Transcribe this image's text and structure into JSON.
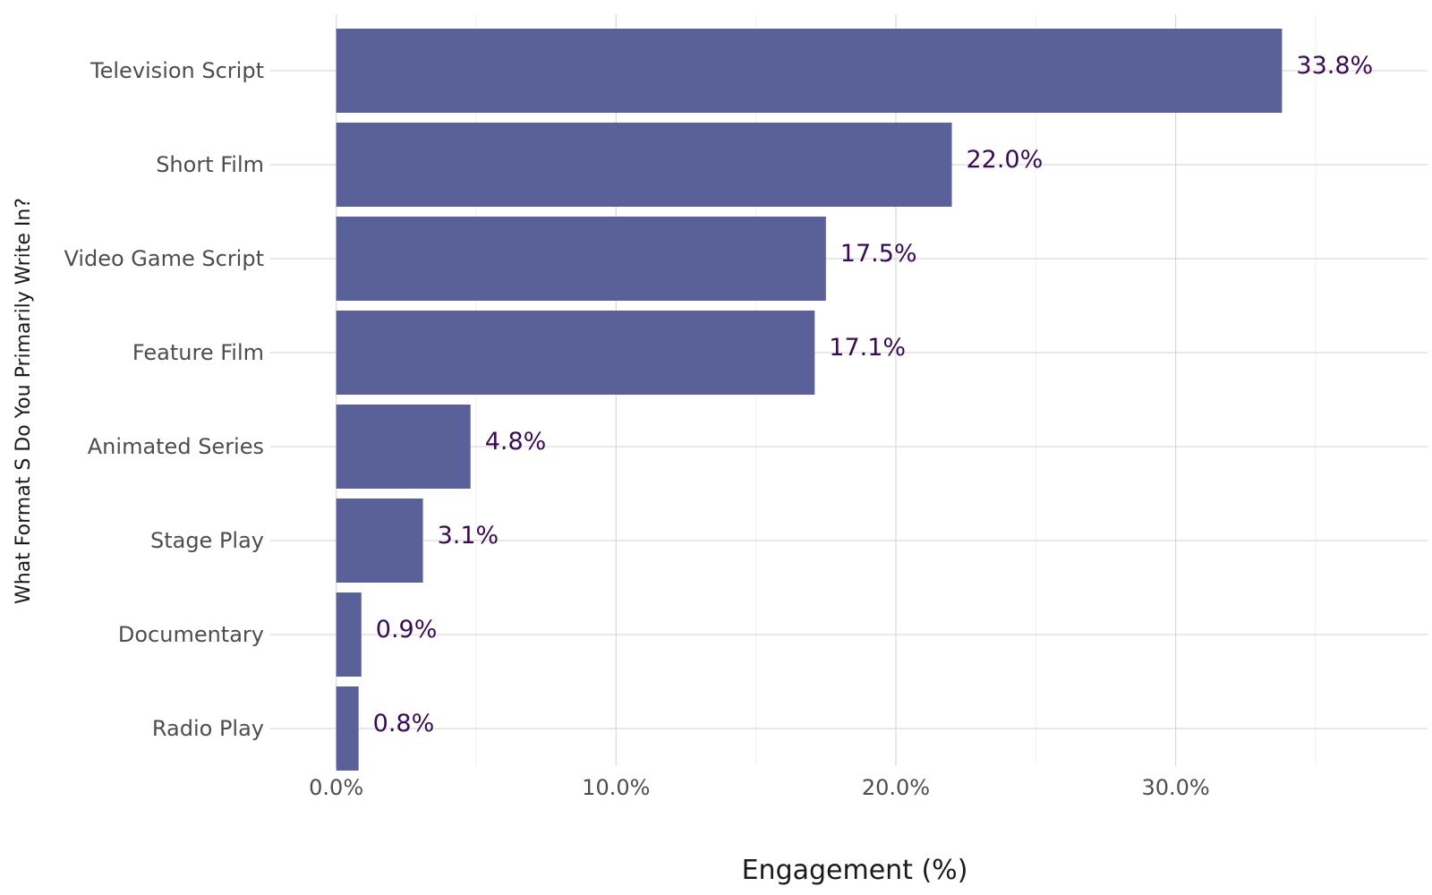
{
  "chart_data": {
    "type": "bar",
    "orientation": "horizontal",
    "title": "",
    "xlabel": "Engagement (%)",
    "ylabel": "What Format S Do You Primarily Write In?",
    "categories": [
      "Television Script",
      "Short Film",
      "Video Game Script",
      "Feature Film",
      "Animated Series",
      "Stage Play",
      "Documentary",
      "Radio Play"
    ],
    "values": [
      33.8,
      22.0,
      17.5,
      17.1,
      4.8,
      3.1,
      0.9,
      0.8
    ],
    "value_labels": [
      "33.8%",
      "22.0%",
      "17.5%",
      "17.1%",
      "4.8%",
      "3.1%",
      "0.9%",
      "0.8%"
    ],
    "xlim": [
      -2.1,
      39.0
    ],
    "xticks": [
      0,
      10,
      20,
      30
    ],
    "xtick_labels": [
      "0.0%",
      "10.0%",
      "20.0%",
      "30.0%"
    ],
    "grid": true,
    "legend": "none",
    "colors": {
      "bar": "#5a6199",
      "value_label": "#3b0a55",
      "grid_major": "#d9d9d9",
      "grid_minor": "#efefef"
    }
  }
}
